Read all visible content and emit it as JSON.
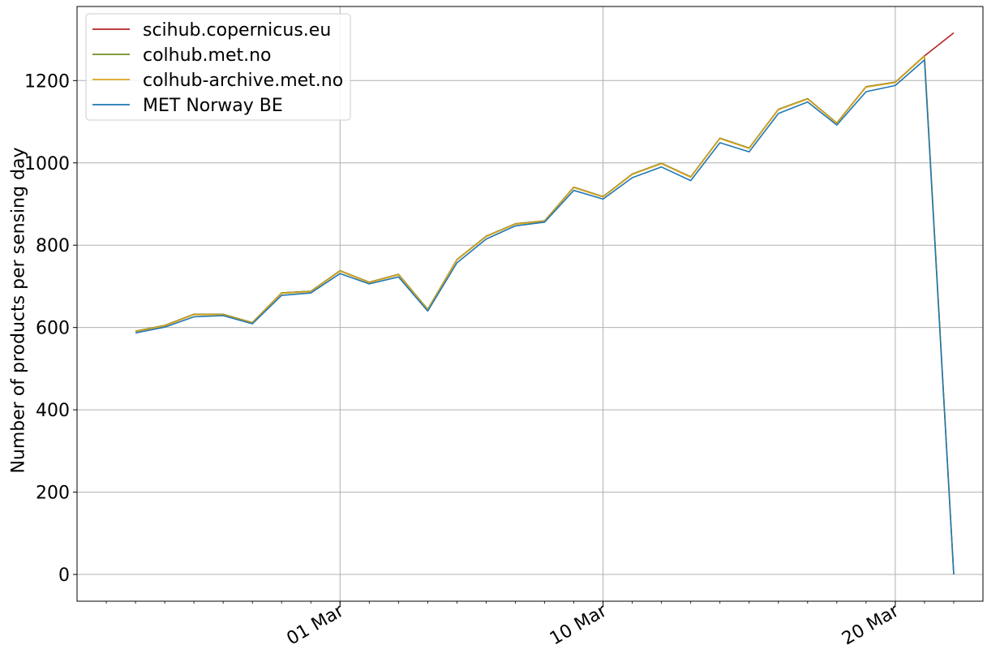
{
  "chart_data": {
    "type": "line",
    "title": "",
    "xlabel": "",
    "ylabel": "Number of products per sensing day",
    "x": [
      "2022-02-22",
      "2022-02-23",
      "2022-02-24",
      "2022-02-25",
      "2022-02-26",
      "2022-02-27",
      "2022-02-28",
      "2022-03-01",
      "2022-03-02",
      "2022-03-03",
      "2022-03-04",
      "2022-03-05",
      "2022-03-06",
      "2022-03-07",
      "2022-03-08",
      "2022-03-09",
      "2022-03-10",
      "2022-03-11",
      "2022-03-12",
      "2022-03-13",
      "2022-03-14",
      "2022-03-15",
      "2022-03-16",
      "2022-03-17",
      "2022-03-18",
      "2022-03-19",
      "2022-03-20",
      "2022-03-21",
      "2022-03-22"
    ],
    "xlim": [
      "2022-02-20",
      "2022-03-23"
    ],
    "ylim": [
      -65,
      1380
    ],
    "x_major_ticks": [
      {
        "date": "2022-03-01",
        "label": "01 Mar"
      },
      {
        "date": "2022-03-10",
        "label": "10 Mar"
      },
      {
        "date": "2022-03-20",
        "label": "20 Mar"
      }
    ],
    "y_ticks": [
      0,
      200,
      400,
      600,
      800,
      1000,
      1200
    ],
    "grid": true,
    "legend_position": "top-left",
    "series": [
      {
        "name": "scihub.copernicus.eu",
        "color": "#b22222",
        "values": [
          591,
          605,
          632,
          632,
          612,
          684,
          688,
          738,
          710,
          729,
          644,
          765,
          822,
          852,
          859,
          941,
          918,
          973,
          999,
          966,
          1060,
          1036,
          1130,
          1156,
          1097,
          1185,
          1196,
          1260,
          1316
        ]
      },
      {
        "name": "colhub.met.no",
        "color": "#6b8e23",
        "values": [
          591,
          605,
          632,
          632,
          612,
          684,
          688,
          738,
          710,
          729,
          644,
          765,
          822,
          852,
          859,
          941,
          918,
          973,
          999,
          966,
          1060,
          1036,
          1130,
          1156,
          1097,
          1185,
          1196,
          1260,
          0
        ]
      },
      {
        "name": "colhub-archive.met.no",
        "color": "#daa520",
        "values": [
          590,
          604,
          631,
          631,
          611,
          683,
          687,
          737,
          709,
          728,
          643,
          764,
          821,
          851,
          858,
          940,
          917,
          972,
          998,
          965,
          1059,
          1035,
          1129,
          1155,
          1096,
          1184,
          1195,
          1259,
          0
        ]
      },
      {
        "name": "MET Norway BE",
        "color": "#1f77b4",
        "values": [
          587,
          601,
          626,
          629,
          609,
          678,
          684,
          731,
          706,
          723,
          640,
          757,
          815,
          847,
          856,
          933,
          912,
          964,
          990,
          957,
          1049,
          1027,
          1120,
          1148,
          1092,
          1173,
          1188,
          1250,
          0
        ]
      }
    ]
  }
}
